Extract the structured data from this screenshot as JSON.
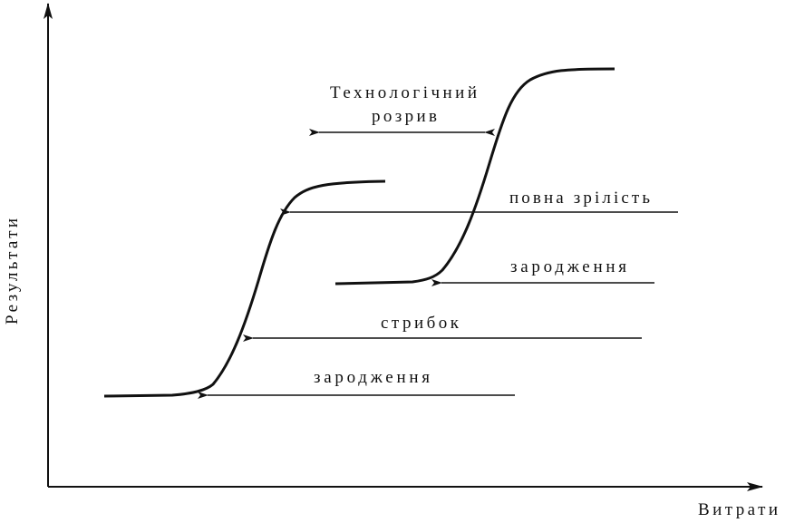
{
  "gap_label": [
    "Технологічний",
    "розрив"
  ],
  "curve_labels": {
    "maturity": "повна зрілість",
    "birth_upper": "зародження",
    "jump": "стрибок",
    "birth_lower": "зародження"
  },
  "axes": {
    "y_label": "Результати",
    "x_label": "Витрати"
  }
}
